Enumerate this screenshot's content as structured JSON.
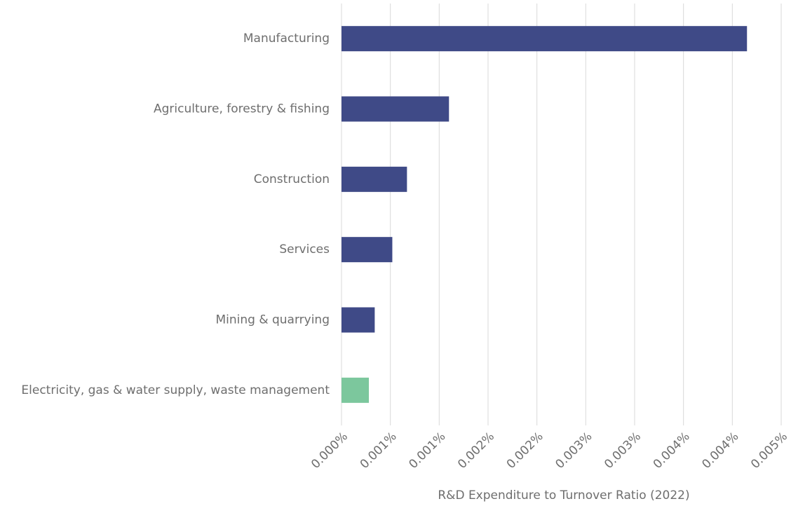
{
  "chart_data": {
    "type": "hbar",
    "x_label": "R&D Expenditure to Turnover Ratio (2022)",
    "categories": [
      "Manufacturing",
      "Agriculture, forestry & fishing",
      "Construction",
      "Services",
      "Mining & quarrying",
      "Electricity, gas & water supply, waste management"
    ],
    "values": [
      0.00415,
      0.0011,
      0.00067,
      0.00052,
      0.00034,
      0.00028
    ],
    "colors": [
      "#3f4a87",
      "#3f4a87",
      "#3f4a87",
      "#3f4a87",
      "#3f4a87",
      "#7cc79d"
    ],
    "xlim": [
      0,
      0.0045
    ],
    "xticks": [
      {
        "value": 0,
        "label": "0.000%"
      },
      {
        "value": 0.0005,
        "label": "0.001%"
      },
      {
        "value": 0.001,
        "label": "0.001%"
      },
      {
        "value": 0.0015,
        "label": "0.002%"
      },
      {
        "value": 0.002,
        "label": "0.002%"
      },
      {
        "value": 0.0025,
        "label": "0.003%"
      },
      {
        "value": 0.003,
        "label": "0.003%"
      },
      {
        "value": 0.0035,
        "label": "0.004%"
      },
      {
        "value": 0.004,
        "label": "0.004%"
      },
      {
        "value": 0.0045,
        "label": "0.005%"
      }
    ],
    "grid": true
  }
}
